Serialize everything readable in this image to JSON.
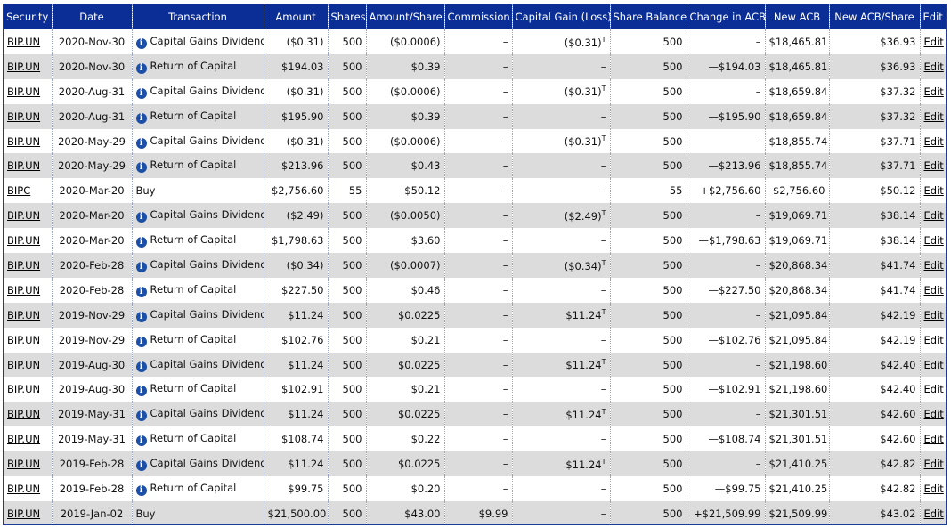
{
  "headers": {
    "security": "Security",
    "date": "Date",
    "transaction": "Transaction",
    "amount": "Amount",
    "shares": "Shares",
    "amount_share": "Amount/Share",
    "commission": "Commission",
    "capital_gain": "Capital Gain (Loss)",
    "share_balance": "Share Balance",
    "change_acb": "Change in ACB",
    "new_acb": "New ACB",
    "new_acb_share": "New ACB/Share",
    "edit": "Edit"
  },
  "icon": "info-icon",
  "rows": [
    {
      "security": "BIP.UN",
      "date": "2020-Nov-30",
      "info": true,
      "transaction": "Capital Gains Dividend",
      "amount": "($0.31)",
      "shares": "500",
      "amount_share": "($0.0006)",
      "commission": "–",
      "capital_gain": "($0.31)",
      "cg_sup": "T",
      "share_balance": "500",
      "change_acb": "–",
      "new_acb": "$18,465.81",
      "new_acb_share": "$36.93",
      "edit": "Edit"
    },
    {
      "security": "BIP.UN",
      "date": "2020-Nov-30",
      "info": true,
      "transaction": "Return of Capital",
      "amount": "$194.03",
      "shares": "500",
      "amount_share": "$0.39",
      "commission": "–",
      "capital_gain": "–",
      "cg_sup": "",
      "share_balance": "500",
      "change_acb": "—$194.03",
      "new_acb": "$18,465.81",
      "new_acb_share": "$36.93",
      "edit": "Edit"
    },
    {
      "security": "BIP.UN",
      "date": "2020-Aug-31",
      "info": true,
      "transaction": "Capital Gains Dividend",
      "amount": "($0.31)",
      "shares": "500",
      "amount_share": "($0.0006)",
      "commission": "–",
      "capital_gain": "($0.31)",
      "cg_sup": "T",
      "share_balance": "500",
      "change_acb": "–",
      "new_acb": "$18,659.84",
      "new_acb_share": "$37.32",
      "edit": "Edit"
    },
    {
      "security": "BIP.UN",
      "date": "2020-Aug-31",
      "info": true,
      "transaction": "Return of Capital",
      "amount": "$195.90",
      "shares": "500",
      "amount_share": "$0.39",
      "commission": "–",
      "capital_gain": "–",
      "cg_sup": "",
      "share_balance": "500",
      "change_acb": "—$195.90",
      "new_acb": "$18,659.84",
      "new_acb_share": "$37.32",
      "edit": "Edit"
    },
    {
      "security": "BIP.UN",
      "date": "2020-May-29",
      "info": true,
      "transaction": "Capital Gains Dividend",
      "amount": "($0.31)",
      "shares": "500",
      "amount_share": "($0.0006)",
      "commission": "–",
      "capital_gain": "($0.31)",
      "cg_sup": "T",
      "share_balance": "500",
      "change_acb": "–",
      "new_acb": "$18,855.74",
      "new_acb_share": "$37.71",
      "edit": "Edit"
    },
    {
      "security": "BIP.UN",
      "date": "2020-May-29",
      "info": true,
      "transaction": "Return of Capital",
      "amount": "$213.96",
      "shares": "500",
      "amount_share": "$0.43",
      "commission": "–",
      "capital_gain": "–",
      "cg_sup": "",
      "share_balance": "500",
      "change_acb": "—$213.96",
      "new_acb": "$18,855.74",
      "new_acb_share": "$37.71",
      "edit": "Edit"
    },
    {
      "security": "BIPC",
      "date": "2020-Mar-20",
      "info": false,
      "transaction": "Buy",
      "amount": "$2,756.60",
      "shares": "55",
      "amount_share": "$50.12",
      "commission": "–",
      "capital_gain": "–",
      "cg_sup": "",
      "share_balance": "55",
      "change_acb": "+$2,756.60",
      "new_acb": "$2,756.60",
      "new_acb_share": "$50.12",
      "edit": "Edit"
    },
    {
      "security": "BIP.UN",
      "date": "2020-Mar-20",
      "info": true,
      "transaction": "Capital Gains Dividend",
      "amount": "($2.49)",
      "shares": "500",
      "amount_share": "($0.0050)",
      "commission": "–",
      "capital_gain": "($2.49)",
      "cg_sup": "T",
      "share_balance": "500",
      "change_acb": "–",
      "new_acb": "$19,069.71",
      "new_acb_share": "$38.14",
      "edit": "Edit"
    },
    {
      "security": "BIP.UN",
      "date": "2020-Mar-20",
      "info": true,
      "transaction": "Return of Capital",
      "amount": "$1,798.63",
      "shares": "500",
      "amount_share": "$3.60",
      "commission": "–",
      "capital_gain": "–",
      "cg_sup": "",
      "share_balance": "500",
      "change_acb": "—$1,798.63",
      "new_acb": "$19,069.71",
      "new_acb_share": "$38.14",
      "edit": "Edit"
    },
    {
      "security": "BIP.UN",
      "date": "2020-Feb-28",
      "info": true,
      "transaction": "Capital Gains Dividend",
      "amount": "($0.34)",
      "shares": "500",
      "amount_share": "($0.0007)",
      "commission": "–",
      "capital_gain": "($0.34)",
      "cg_sup": "T",
      "share_balance": "500",
      "change_acb": "–",
      "new_acb": "$20,868.34",
      "new_acb_share": "$41.74",
      "edit": "Edit"
    },
    {
      "security": "BIP.UN",
      "date": "2020-Feb-28",
      "info": true,
      "transaction": "Return of Capital",
      "amount": "$227.50",
      "shares": "500",
      "amount_share": "$0.46",
      "commission": "–",
      "capital_gain": "–",
      "cg_sup": "",
      "share_balance": "500",
      "change_acb": "—$227.50",
      "new_acb": "$20,868.34",
      "new_acb_share": "$41.74",
      "edit": "Edit"
    },
    {
      "security": "BIP.UN",
      "date": "2019-Nov-29",
      "info": true,
      "transaction": "Capital Gains Dividend",
      "amount": "$11.24",
      "shares": "500",
      "amount_share": "$0.0225",
      "commission": "–",
      "capital_gain": "$11.24",
      "cg_sup": "T",
      "share_balance": "500",
      "change_acb": "–",
      "new_acb": "$21,095.84",
      "new_acb_share": "$42.19",
      "edit": "Edit"
    },
    {
      "security": "BIP.UN",
      "date": "2019-Nov-29",
      "info": true,
      "transaction": "Return of Capital",
      "amount": "$102.76",
      "shares": "500",
      "amount_share": "$0.21",
      "commission": "–",
      "capital_gain": "–",
      "cg_sup": "",
      "share_balance": "500",
      "change_acb": "—$102.76",
      "new_acb": "$21,095.84",
      "new_acb_share": "$42.19",
      "edit": "Edit"
    },
    {
      "security": "BIP.UN",
      "date": "2019-Aug-30",
      "info": true,
      "transaction": "Capital Gains Dividend",
      "amount": "$11.24",
      "shares": "500",
      "amount_share": "$0.0225",
      "commission": "–",
      "capital_gain": "$11.24",
      "cg_sup": "T",
      "share_balance": "500",
      "change_acb": "–",
      "new_acb": "$21,198.60",
      "new_acb_share": "$42.40",
      "edit": "Edit"
    },
    {
      "security": "BIP.UN",
      "date": "2019-Aug-30",
      "info": true,
      "transaction": "Return of Capital",
      "amount": "$102.91",
      "shares": "500",
      "amount_share": "$0.21",
      "commission": "–",
      "capital_gain": "–",
      "cg_sup": "",
      "share_balance": "500",
      "change_acb": "—$102.91",
      "new_acb": "$21,198.60",
      "new_acb_share": "$42.40",
      "edit": "Edit"
    },
    {
      "security": "BIP.UN",
      "date": "2019-May-31",
      "info": true,
      "transaction": "Capital Gains Dividend",
      "amount": "$11.24",
      "shares": "500",
      "amount_share": "$0.0225",
      "commission": "–",
      "capital_gain": "$11.24",
      "cg_sup": "T",
      "share_balance": "500",
      "change_acb": "–",
      "new_acb": "$21,301.51",
      "new_acb_share": "$42.60",
      "edit": "Edit"
    },
    {
      "security": "BIP.UN",
      "date": "2019-May-31",
      "info": true,
      "transaction": "Return of Capital",
      "amount": "$108.74",
      "shares": "500",
      "amount_share": "$0.22",
      "commission": "–",
      "capital_gain": "–",
      "cg_sup": "",
      "share_balance": "500",
      "change_acb": "—$108.74",
      "new_acb": "$21,301.51",
      "new_acb_share": "$42.60",
      "edit": "Edit"
    },
    {
      "security": "BIP.UN",
      "date": "2019-Feb-28",
      "info": true,
      "transaction": "Capital Gains Dividend",
      "amount": "$11.24",
      "shares": "500",
      "amount_share": "$0.0225",
      "commission": "–",
      "capital_gain": "$11.24",
      "cg_sup": "T",
      "share_balance": "500",
      "change_acb": "–",
      "new_acb": "$21,410.25",
      "new_acb_share": "$42.82",
      "edit": "Edit"
    },
    {
      "security": "BIP.UN",
      "date": "2019-Feb-28",
      "info": true,
      "transaction": "Return of Capital",
      "amount": "$99.75",
      "shares": "500",
      "amount_share": "$0.20",
      "commission": "–",
      "capital_gain": "–",
      "cg_sup": "",
      "share_balance": "500",
      "change_acb": "—$99.75",
      "new_acb": "$21,410.25",
      "new_acb_share": "$42.82",
      "edit": "Edit"
    },
    {
      "security": "BIP.UN",
      "date": "2019-Jan-02",
      "info": false,
      "transaction": "Buy",
      "amount": "$21,500.00",
      "shares": "500",
      "amount_share": "$43.00",
      "commission": "$9.99",
      "capital_gain": "–",
      "cg_sup": "",
      "share_balance": "500",
      "change_acb": "+$21,509.99",
      "new_acb": "$21,509.99",
      "new_acb_share": "$43.02",
      "edit": "Edit"
    }
  ]
}
